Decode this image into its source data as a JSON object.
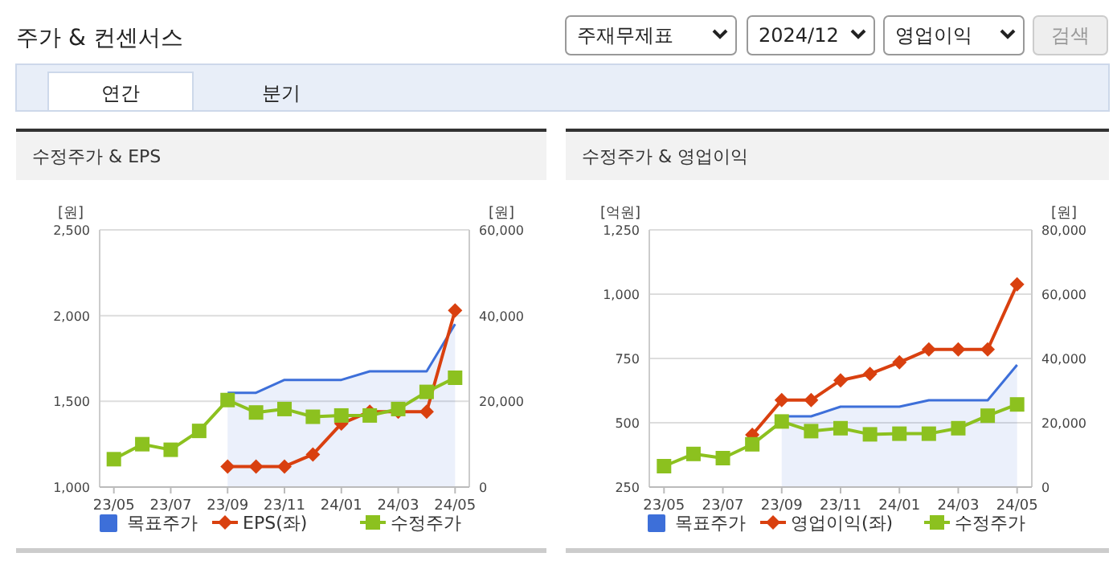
{
  "chart_data": [
    {
      "type": "other",
      "title": "주가 & 컨센서스",
      "annotations": [
        "주재무제표",
        "2024/12",
        "영업이익",
        "검색",
        "연간",
        "분기"
      ]
    },
    {
      "type": "line",
      "title": "수정주가 & EPS",
      "ylabel": "[원]",
      "y2label": "[원]",
      "categories": [
        "23/05",
        null,
        "23/07",
        null,
        "23/09",
        null,
        "23/11",
        null,
        "24/01",
        null,
        "24/03",
        null,
        "24/05"
      ],
      "ylim": [
        1000,
        2500
      ],
      "yticks": [
        {
          "value": 1000,
          "label": "1,000"
        },
        {
          "value": 1500,
          "label": "1,500"
        },
        {
          "value": 2000,
          "label": "2,000"
        },
        {
          "value": 2500,
          "label": "2,500"
        }
      ],
      "y2lim": [
        0,
        60000
      ],
      "y2ticks": [
        0,
        {
          "value": 20000,
          "label": "20,000"
        },
        {
          "value": 40000,
          "label": "40,000"
        },
        {
          "value": 60000,
          "label": "60,000"
        }
      ],
      "grid": "y",
      "legend": "bottom",
      "series": [
        {
          "name": "목표주가",
          "type": "area",
          "axis": "y2",
          "color": "#3d6fd9",
          "marker": "none",
          "values": [
            null,
            null,
            null,
            null,
            22000,
            22000,
            25000,
            25000,
            25000,
            27000,
            27000,
            27000,
            38000
          ]
        },
        {
          "name": "EPS(좌)",
          "type": "line",
          "color": "#d9400f",
          "marker": "diamond",
          "values": [
            null,
            null,
            null,
            null,
            1120,
            1120,
            1120,
            1190,
            1370,
            1440,
            1440,
            1440,
            2030
          ]
        },
        {
          "name": "수정주가",
          "type": "line",
          "axis": "y2",
          "color": "#8cc11f",
          "marker": "square",
          "values": [
            6500,
            10000,
            8700,
            13100,
            20300,
            17400,
            18200,
            16400,
            16700,
            16700,
            18200,
            22200,
            25500
          ]
        }
      ]
    },
    {
      "type": "line",
      "title": "수정주가 & 영업이익",
      "ylabel": "[억원]",
      "y2label": "[원]",
      "categories": [
        "23/05",
        null,
        "23/07",
        null,
        "23/09",
        null,
        "23/11",
        null,
        "24/01",
        null,
        "24/03",
        null,
        "24/05"
      ],
      "ylim": [
        250,
        1250
      ],
      "yticks": [
        250,
        500,
        750,
        {
          "value": 1000,
          "label": "1,000"
        },
        {
          "value": 1250,
          "label": "1,250"
        }
      ],
      "y2lim": [
        0,
        80000
      ],
      "y2ticks": [
        0,
        {
          "value": 20000,
          "label": "20,000"
        },
        {
          "value": 40000,
          "label": "40,000"
        },
        {
          "value": 60000,
          "label": "60,000"
        },
        {
          "value": 80000,
          "label": "80,000"
        }
      ],
      "grid": "y",
      "legend": "bottom",
      "series": [
        {
          "name": "목표주가",
          "type": "area",
          "axis": "y2",
          "color": "#3d6fd9",
          "marker": "none",
          "values": [
            null,
            null,
            null,
            null,
            22000,
            22000,
            25000,
            25000,
            25000,
            27000,
            27000,
            27000,
            38000
          ]
        },
        {
          "name": "영업이익(좌)",
          "type": "line",
          "color": "#d9400f",
          "marker": "diamond",
          "values": [
            null,
            null,
            null,
            453,
            588,
            588,
            665,
            690,
            735,
            785,
            785,
            785,
            1038
          ]
        },
        {
          "name": "수정주가",
          "type": "line",
          "axis": "y2",
          "color": "#8cc11f",
          "marker": "square",
          "values": [
            6500,
            10300,
            9000,
            13300,
            20400,
            17400,
            18300,
            16400,
            16600,
            16600,
            18300,
            22200,
            25700
          ]
        }
      ]
    }
  ]
}
